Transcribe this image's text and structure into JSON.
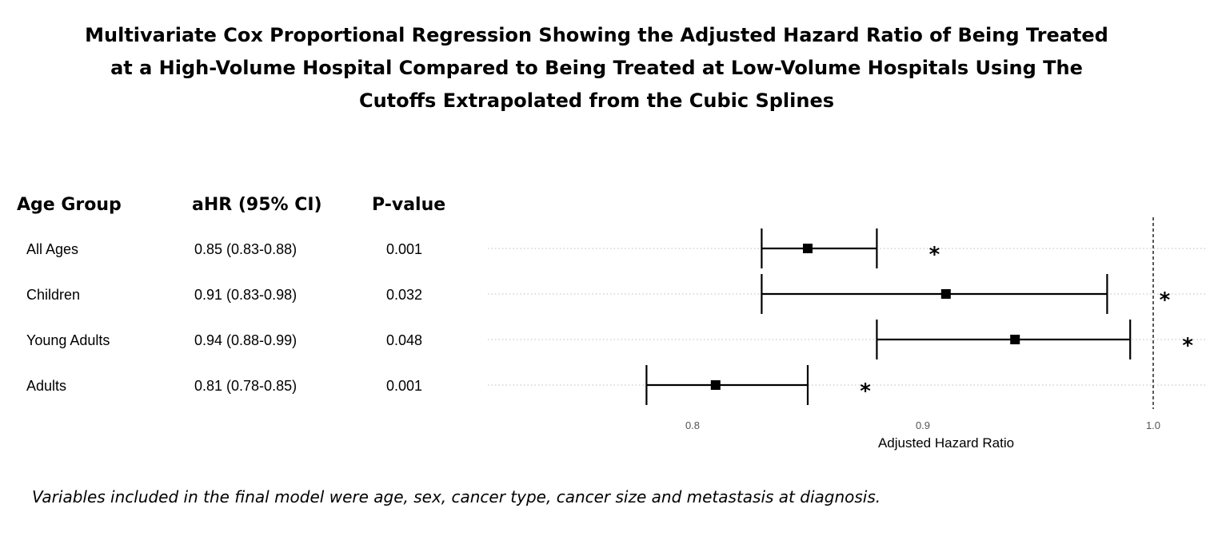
{
  "title_lines": [
    "Multivariate Cox Proportional Regression Showing the Adjusted Hazard Ratio of Being Treated",
    "at a High-Volume Hospital Compared to Being Treated at Low-Volume Hospitals Using The",
    "Cutoffs Extrapolated from the Cubic Splines"
  ],
  "table": {
    "headers": [
      "Age Group",
      "aHR (95% CI)",
      "P-value"
    ],
    "rows": [
      {
        "group": "All Ages",
        "ahr": "0.85 (0.83-0.88)",
        "p": "0.001"
      },
      {
        "group": "Children",
        "ahr": "0.91 (0.83-0.98)",
        "p": "0.032"
      },
      {
        "group": "Young Adults",
        "ahr": "0.94 (0.88-0.99)",
        "p": "0.048"
      },
      {
        "group": "Adults",
        "ahr": "0.81 (0.78-0.85)",
        "p": "0.001"
      }
    ]
  },
  "footnote": "Variables included in the final model were age, sex, cancer type, cancer size and metastasis at diagnosis.",
  "chart_data": {
    "type": "scatter",
    "subtype": "forest-plot",
    "xlabel": "Adjusted Hazard Ratio",
    "xlim": [
      0.72,
      1.02
    ],
    "xticks": [
      0.8,
      0.9,
      1.0
    ],
    "xtick_labels": [
      "0.8",
      "0.9",
      "1.0"
    ],
    "reference_line": 1.0,
    "grid": "horizontal dotted",
    "categories": [
      "All Ages",
      "Children",
      "Young Adults",
      "Adults"
    ],
    "series": [
      {
        "values": [
          0.85,
          0.91,
          0.94,
          0.81
        ],
        "lower": [
          0.83,
          0.83,
          0.88,
          0.78
        ],
        "upper": [
          0.88,
          0.98,
          0.99,
          0.85
        ]
      }
    ],
    "significance_markers": [
      {
        "category": "All Ages",
        "label": "*",
        "x": 0.905
      },
      {
        "category": "Children",
        "label": "*",
        "x": 1.005
      },
      {
        "category": "Young Adults",
        "label": "*",
        "x": 1.015
      },
      {
        "category": "Adults",
        "label": "*",
        "x": 0.875
      }
    ]
  }
}
